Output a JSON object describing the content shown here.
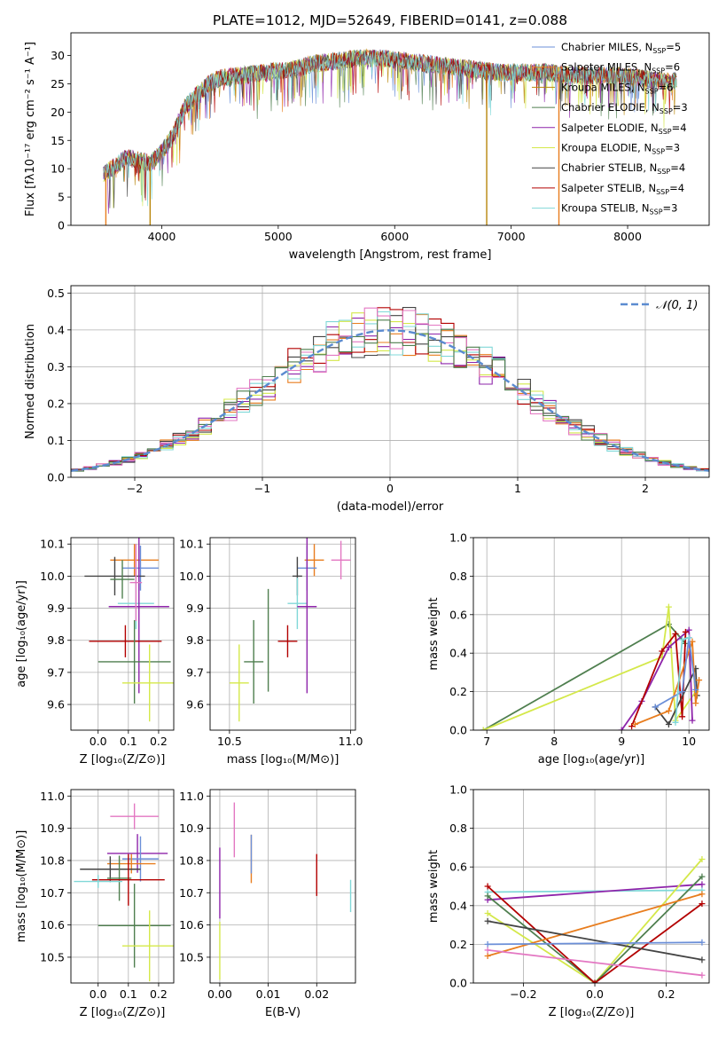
{
  "figure": {
    "title": "PLATE=1012, MJD=52649, FIBERID=0141, z=0.088",
    "colors": {
      "chabrier_miles": "#6b8fd8",
      "salpeter_miles": "#e87d1e",
      "kroupa_miles": "#b8860b",
      "chabrier_elodie": "#4f7f4f",
      "salpeter_elodie": "#8e24aa",
      "kroupa_elodie": "#d4e84a",
      "chabrier_stelib": "#444444",
      "salpeter_stelib": "#b30000",
      "kroupa_stelib": "#80d8d8",
      "pink": "#e377c2"
    }
  },
  "chart_data": [
    {
      "id": "spectrum",
      "type": "line",
      "xlabel": "wavelength [Angstrom, rest frame]",
      "ylabel": "Flux [fλ10⁻¹⁷ erg cm⁻² s⁻¹ A⁻¹]",
      "xlim": [
        3220,
        8700
      ],
      "ylim": [
        0,
        34
      ],
      "xticks": [
        4000,
        5000,
        6000,
        7000,
        8000
      ],
      "yticks": [
        0,
        5,
        10,
        15,
        20,
        25,
        30
      ],
      "legend_position": "top-right",
      "legend": [
        {
          "label": "Chabrier MILES, N",
          "sub": "SSP",
          "suffix": "=5",
          "color": "#6b8fd8"
        },
        {
          "label": "Salpeter MILES, N",
          "sub": "SSP",
          "suffix": "=6",
          "color": "#e87d1e"
        },
        {
          "label": "Kroupa MILES, N",
          "sub": "SSP",
          "suffix": "=6",
          "color": "#b8860b"
        },
        {
          "label": "Chabrier ELODIE, N",
          "sub": "SSP",
          "suffix": "=3",
          "color": "#4f7f4f"
        },
        {
          "label": "Salpeter ELODIE, N",
          "sub": "SSP",
          "suffix": "=4",
          "color": "#8e24aa"
        },
        {
          "label": "Kroupa ELODIE, N",
          "sub": "SSP",
          "suffix": "=3",
          "color": "#d4e84a"
        },
        {
          "label": "Chabrier STELIB, N",
          "sub": "SSP",
          "suffix": "=4",
          "color": "#444444"
        },
        {
          "label": "Salpeter STELIB, N",
          "sub": "SSP",
          "suffix": "=4",
          "color": "#b30000"
        },
        {
          "label": "Kroupa STELIB, N",
          "sub": "SSP",
          "suffix": "=3",
          "color": "#80d8d8"
        }
      ],
      "envelope": {
        "x": [
          3500,
          3700,
          3900,
          4000,
          4100,
          4200,
          4300,
          4400,
          4500,
          4700,
          4900,
          5100,
          5300,
          5500,
          5700,
          5900,
          6100,
          6300,
          6500,
          6700,
          6900,
          7100,
          7300,
          7500,
          7700,
          7900,
          8100,
          8300,
          8420
        ],
        "y": [
          9,
          12,
          11,
          13,
          16,
          21,
          23,
          25,
          26,
          26.5,
          27,
          27.5,
          28.5,
          29,
          29.5,
          29.5,
          29,
          28.5,
          28,
          27.5,
          27,
          27,
          27,
          26.5,
          26.5,
          26.5,
          26,
          25.5,
          25.5
        ]
      },
      "drops": [
        {
          "x": 3520,
          "y": 0,
          "color": "#e87d1e"
        },
        {
          "x": 3900,
          "y": 0,
          "color": "#b8860b"
        },
        {
          "x": 6790,
          "y": 0,
          "color": "#b8860b"
        },
        {
          "x": 7410,
          "y": 0,
          "color": "#e87d1e"
        }
      ]
    },
    {
      "id": "residuals",
      "type": "bar",
      "xlabel": "(data-model)/error",
      "ylabel": "Normed distribution",
      "xlim": [
        -2.5,
        2.5
      ],
      "ylim": [
        0,
        0.52
      ],
      "xticks": [
        -2,
        -1,
        0,
        1,
        2
      ],
      "xticklabels": [
        "−2",
        "−1",
        "0",
        "1",
        "2"
      ],
      "yticks": [
        0,
        0.1,
        0.2,
        0.3,
        0.4,
        0.5
      ],
      "yticklabels": [
        "0.0",
        "0.1",
        "0.2",
        "0.3",
        "0.4",
        "0.5"
      ],
      "bin_width": 0.1,
      "legend": [
        {
          "label": "𝒩(0, 1)",
          "color": "#5b8bd0",
          "style": "dashed"
        }
      ],
      "series": [
        {
          "color": "#e87d1e",
          "seed": 1
        },
        {
          "color": "#8e24aa",
          "seed": 2
        },
        {
          "color": "#d4e84a",
          "seed": 3
        },
        {
          "color": "#444444",
          "seed": 4
        },
        {
          "color": "#b30000",
          "seed": 5
        },
        {
          "color": "#80d8d8",
          "seed": 6
        },
        {
          "color": "#e377c2",
          "seed": 7
        },
        {
          "color": "#4f7f4f",
          "seed": 8
        }
      ]
    },
    {
      "id": "z_vs_age",
      "type": "scatter",
      "xlabel": "Z [log₁₀(Z/Z⊙)]",
      "ylabel": "age  [log₁₀(age/yr)]",
      "xlim": [
        -0.09,
        0.25
      ],
      "ylim": [
        9.52,
        10.12
      ],
      "xticks": [
        0,
        0.1,
        0.2
      ],
      "xticklabels": [
        "0.0",
        "0.1",
        "0.2"
      ],
      "yticks": [
        9.6,
        9.7,
        9.8,
        9.9,
        10.0,
        10.1
      ],
      "yticklabels": [
        "9.6",
        "9.7",
        "9.8",
        "9.9",
        "10.0",
        "10.1"
      ],
      "points": [
        {
          "x": 0.12,
          "y": 10.05,
          "xerr": 0.08,
          "yerr": 0.05,
          "color": "#e87d1e"
        },
        {
          "x": 0.14,
          "y": 10.025,
          "xerr": 0.06,
          "yerr": 0.07,
          "color": "#6b8fd8"
        },
        {
          "x": 0.055,
          "y": 10.0,
          "xerr": 0.1,
          "yerr": 0.06,
          "color": "#444444"
        },
        {
          "x": 0.08,
          "y": 9.99,
          "xerr": 0.04,
          "yerr": 0.06,
          "color": "#4f7f4f"
        },
        {
          "x": 0.125,
          "y": 9.915,
          "xerr": 0.06,
          "yerr": 0.08,
          "color": "#80d8d8"
        },
        {
          "x": 0.135,
          "y": 9.905,
          "xerr": 0.1,
          "yerr": 0.27,
          "color": "#8e24aa"
        },
        {
          "x": 0.09,
          "y": 9.797,
          "xerr": 0.12,
          "yerr": 0.05,
          "color": "#b30000"
        },
        {
          "x": 0.12,
          "y": 9.733,
          "xerr": 0.12,
          "yerr": 0.13,
          "color": "#4f7f4f"
        },
        {
          "x": 0.17,
          "y": 9.667,
          "xerr": 0.09,
          "yerr": 0.12,
          "color": "#d4e84a"
        },
        {
          "x": 0.125,
          "y": 9.98,
          "xerr": 0.02,
          "yerr": 0.12,
          "color": "#e377c2"
        }
      ]
    },
    {
      "id": "mass_vs_age",
      "type": "scatter",
      "xlabel": "mass [log₁₀(M/M⊙)]",
      "ylabel": "",
      "xlim": [
        10.42,
        11.02
      ],
      "ylim": [
        9.52,
        10.12
      ],
      "xticks": [
        10.5,
        11.0
      ],
      "xticklabels": [
        "10.5",
        "11.0"
      ],
      "yticks": [
        9.6,
        9.7,
        9.8,
        9.9,
        10.0,
        10.1
      ],
      "yticklabels": [
        "9.6",
        "9.7",
        "9.8",
        "9.9",
        "10.0",
        "10.1"
      ],
      "points": [
        {
          "x": 10.96,
          "y": 10.05,
          "xerr": 0.04,
          "yerr": 0.06,
          "color": "#e377c2"
        },
        {
          "x": 10.85,
          "y": 10.05,
          "xerr": 0.04,
          "yerr": 0.05,
          "color": "#e87d1e"
        },
        {
          "x": 10.82,
          "y": 10.025,
          "xerr": 0.04,
          "yerr": 0.07,
          "color": "#6b8fd8"
        },
        {
          "x": 10.78,
          "y": 10.0,
          "xerr": 0.02,
          "yerr": 0.06,
          "color": "#444444"
        },
        {
          "x": 10.78,
          "y": 9.915,
          "xerr": 0.04,
          "yerr": 0.08,
          "color": "#80d8d8"
        },
        {
          "x": 10.82,
          "y": 9.905,
          "xerr": 0.04,
          "yerr": 0.27,
          "color": "#8e24aa"
        },
        {
          "x": 10.74,
          "y": 9.797,
          "xerr": 0.04,
          "yerr": 0.05,
          "color": "#b30000"
        },
        {
          "x": 10.6,
          "y": 9.733,
          "xerr": 0.04,
          "yerr": 0.13,
          "color": "#4f7f4f"
        },
        {
          "x": 10.54,
          "y": 9.667,
          "xerr": 0.04,
          "yerr": 0.12,
          "color": "#d4e84a"
        },
        {
          "x": 10.66,
          "y": 9.8,
          "xerr": 0.0,
          "yerr": 0.16,
          "color": "#4f7f4f"
        }
      ]
    },
    {
      "id": "age_vs_weight",
      "type": "line",
      "xlabel": "age  [log₁₀(age/yr)]",
      "ylabel": "mass weight",
      "xlim": [
        6.8,
        10.3
      ],
      "ylim": [
        0,
        1.0
      ],
      "xticks": [
        7,
        8,
        9,
        10
      ],
      "yticks": [
        0,
        0.2,
        0.4,
        0.6,
        0.8,
        1.0
      ],
      "yticklabels": [
        "0.0",
        "0.2",
        "0.4",
        "0.6",
        "0.8",
        "1.0"
      ],
      "series": [
        {
          "color": "#4f7f4f",
          "x": [
            6.95,
            9.7,
            9.95
          ],
          "y": [
            0.0,
            0.55,
            0.45
          ]
        },
        {
          "color": "#d4e84a",
          "x": [
            6.95,
            9.6,
            9.7,
            9.8,
            10.1
          ],
          "y": [
            0.0,
            0.38,
            0.64,
            0.05,
            0.2
          ]
        },
        {
          "color": "#8e24aa",
          "x": [
            9.0,
            9.3,
            9.7,
            10.0,
            10.05
          ],
          "y": [
            0.0,
            0.15,
            0.43,
            0.52,
            0.05
          ]
        },
        {
          "color": "#b30000",
          "x": [
            9.15,
            9.6,
            9.8,
            9.9,
            9.95
          ],
          "y": [
            0.02,
            0.41,
            0.5,
            0.07,
            0.51
          ]
        },
        {
          "color": "#444444",
          "x": [
            9.5,
            9.7,
            10.1,
            10.12
          ],
          "y": [
            0.12,
            0.03,
            0.32,
            0.18
          ]
        },
        {
          "color": "#e87d1e",
          "x": [
            9.2,
            9.7,
            10.05,
            10.1,
            10.15
          ],
          "y": [
            0.03,
            0.1,
            0.46,
            0.14,
            0.26
          ]
        },
        {
          "color": "#6b8fd8",
          "x": [
            9.5,
            9.9,
            10.0,
            10.1
          ],
          "y": [
            0.12,
            0.2,
            0.48,
            0.21
          ]
        },
        {
          "color": "#80d8d8",
          "x": [
            9.8,
            9.9,
            10.0
          ],
          "y": [
            0.04,
            0.47,
            0.48
          ]
        }
      ]
    },
    {
      "id": "z_vs_mass",
      "type": "scatter",
      "xlabel": "Z [log₁₀(Z/Z⊙)]",
      "ylabel": "mass [log₁₀(M/M⊙)]",
      "xlim": [
        -0.09,
        0.25
      ],
      "ylim": [
        10.42,
        11.02
      ],
      "xticks": [
        0,
        0.1,
        0.2
      ],
      "xticklabels": [
        "0.0",
        "0.1",
        "0.2"
      ],
      "yticks": [
        10.5,
        10.6,
        10.7,
        10.8,
        10.9,
        11.0
      ],
      "yticklabels": [
        "10.5",
        "10.6",
        "10.7",
        "10.8",
        "10.9",
        "11.0"
      ],
      "points": [
        {
          "x": 0.12,
          "y": 10.937,
          "xerr": 0.08,
          "yerr": 0.04,
          "color": "#e377c2"
        },
        {
          "x": 0.13,
          "y": 10.822,
          "xerr": 0.1,
          "yerr": 0.06,
          "color": "#8e24aa"
        },
        {
          "x": 0.14,
          "y": 10.805,
          "xerr": 0.06,
          "yerr": 0.07,
          "color": "#6b8fd8"
        },
        {
          "x": 0.11,
          "y": 10.79,
          "xerr": 0.08,
          "yerr": 0.03,
          "color": "#e87d1e"
        },
        {
          "x": 0.04,
          "y": 10.773,
          "xerr": 0.1,
          "yerr": 0.04,
          "color": "#444444"
        },
        {
          "x": 0.07,
          "y": 10.745,
          "xerr": 0.04,
          "yerr": 0.07,
          "color": "#4f7f4f"
        },
        {
          "x": 0.1,
          "y": 10.74,
          "xerr": 0.12,
          "yerr": 0.08,
          "color": "#b30000"
        },
        {
          "x": 0.0,
          "y": 10.735,
          "xerr": 0.08,
          "yerr": 0.02,
          "color": "#80d8d8"
        },
        {
          "x": 0.12,
          "y": 10.598,
          "xerr": 0.12,
          "yerr": 0.13,
          "color": "#4f7f4f"
        },
        {
          "x": 0.17,
          "y": 10.535,
          "xerr": 0.09,
          "yerr": 0.11,
          "color": "#d4e84a"
        }
      ]
    },
    {
      "id": "ebv_vs_mass",
      "type": "scatter",
      "xlabel": "E(B-V)",
      "ylabel": "",
      "xlim": [
        -0.002,
        0.028
      ],
      "ylim": [
        10.42,
        11.02
      ],
      "xticks": [
        0,
        0.01,
        0.02
      ],
      "xticklabels": [
        "0.00",
        "0.01",
        "0.02"
      ],
      "yticks": [
        10.5,
        10.6,
        10.7,
        10.8,
        10.9,
        11.0
      ],
      "yticklabels": [
        "10.5",
        "10.6",
        "10.7",
        "10.8",
        "10.9",
        "11.0"
      ],
      "points": [
        {
          "x": 0.003,
          "y": 10.895,
          "xerr": 0,
          "yerr": 0.085,
          "color": "#e377c2"
        },
        {
          "x": 0.0,
          "y": 10.73,
          "xerr": 0,
          "yerr": 0.11,
          "color": "#8e24aa"
        },
        {
          "x": 0.0065,
          "y": 10.805,
          "xerr": 0,
          "yerr": 0.075,
          "color": "#e87d1e"
        },
        {
          "x": 0.0065,
          "y": 10.82,
          "xerr": 0,
          "yerr": 0.06,
          "color": "#6b8fd8"
        },
        {
          "x": 0.02,
          "y": 10.755,
          "xerr": 0,
          "yerr": 0.065,
          "color": "#b30000"
        },
        {
          "x": 0.027,
          "y": 10.69,
          "xerr": 0,
          "yerr": 0.05,
          "color": "#80d8d8"
        },
        {
          "x": 0.0,
          "y": 10.52,
          "xerr": 0,
          "yerr": 0.09,
          "color": "#d4e84a"
        }
      ]
    },
    {
      "id": "z_vs_weight",
      "type": "line",
      "xlabel": "Z [log₁₀(Z/Z⊙)]",
      "ylabel": "mass weight",
      "xlim": [
        -0.34,
        0.32
      ],
      "ylim": [
        0,
        1.0
      ],
      "xticks": [
        -0.2,
        0.0,
        0.2
      ],
      "xticklabels": [
        "−0.2",
        "0.0",
        "0.2"
      ],
      "yticks": [
        0,
        0.2,
        0.4,
        0.6,
        0.8,
        1.0
      ],
      "yticklabels": [
        "0.0",
        "0.2",
        "0.4",
        "0.6",
        "0.8",
        "1.0"
      ],
      "series": [
        {
          "color": "#80d8d8",
          "x": [
            -0.3,
            0.3
          ],
          "y": [
            0.47,
            0.48
          ]
        },
        {
          "color": "#8e24aa",
          "x": [
            -0.3,
            0.3
          ],
          "y": [
            0.43,
            0.51
          ]
        },
        {
          "color": "#d4e84a",
          "x": [
            -0.3,
            0.0,
            0.3
          ],
          "y": [
            0.36,
            0.0,
            0.64
          ]
        },
        {
          "color": "#4f7f4f",
          "x": [
            -0.3,
            0.0,
            0.3
          ],
          "y": [
            0.45,
            0.0,
            0.55
          ]
        },
        {
          "color": "#b30000",
          "x": [
            -0.3,
            0.0,
            0.3
          ],
          "y": [
            0.5,
            0.0,
            0.41
          ]
        },
        {
          "color": "#e87d1e",
          "x": [
            -0.3,
            0.3
          ],
          "y": [
            0.14,
            0.46
          ]
        },
        {
          "color": "#444444",
          "x": [
            -0.3,
            0.3
          ],
          "y": [
            0.32,
            0.12
          ]
        },
        {
          "color": "#6b8fd8",
          "x": [
            -0.3,
            0.3
          ],
          "y": [
            0.2,
            0.21
          ]
        },
        {
          "color": "#e377c2",
          "x": [
            -0.3,
            0.3
          ],
          "y": [
            0.17,
            0.04
          ]
        }
      ]
    }
  ]
}
